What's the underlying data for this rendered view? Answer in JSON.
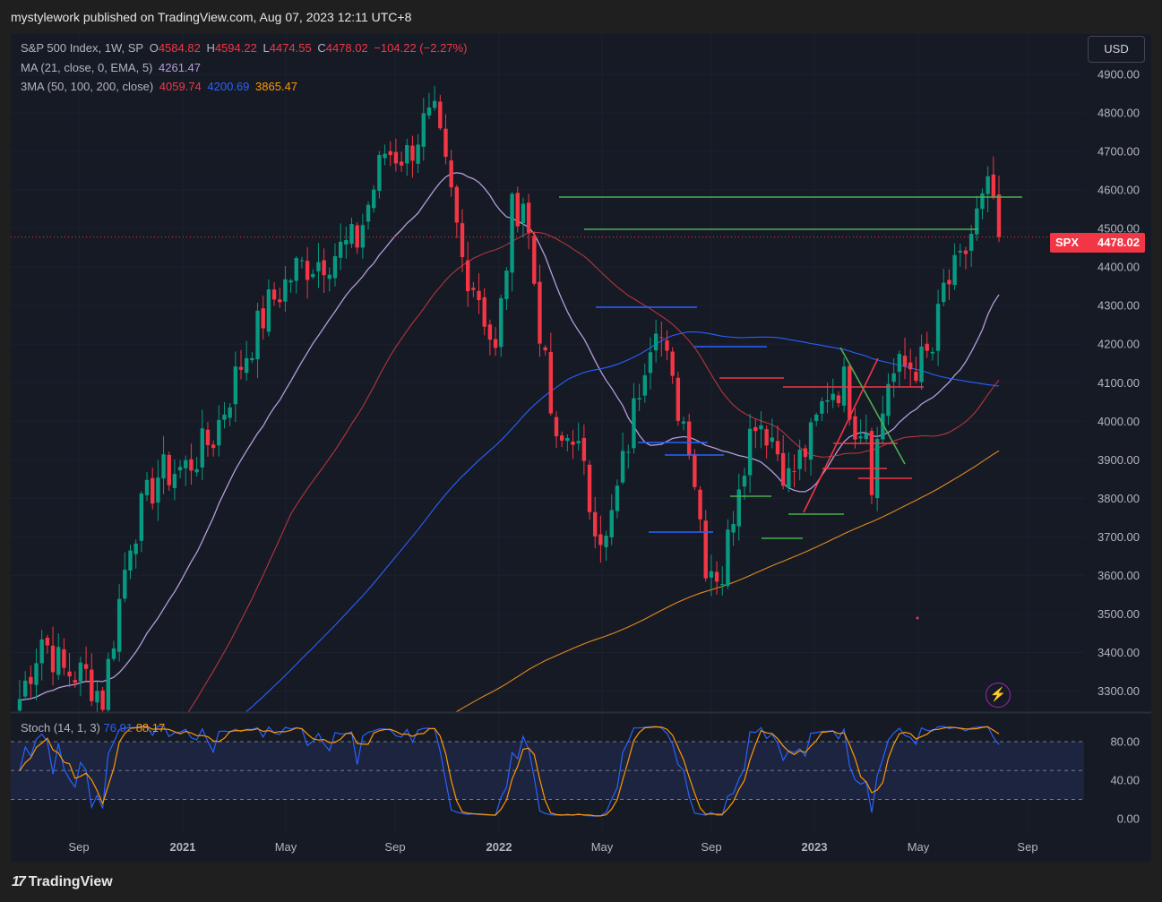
{
  "header": {
    "published": "mystylework published on TradingView.com, Aug 07, 2023 12:11 UTC+8"
  },
  "legend": {
    "symbol": "S&P 500 Index, 1W, SP",
    "open_label": "O",
    "open": "4584.82",
    "high_label": "H",
    "high": "4594.22",
    "low_label": "L",
    "low": "4474.55",
    "close_label": "C",
    "close": "4478.02",
    "change": "−104.22 (−2.27%)",
    "ma_label": "MA (21, close, 0, EMA, 5)",
    "ma_value": "4261.47",
    "ma3_label": "3MA (50, 100, 200, close)",
    "ma50": "4059.74",
    "ma100": "4200.69",
    "ma200": "3865.47"
  },
  "currency": "USD",
  "price_tag": {
    "symbol": "SPX",
    "value": "4478.02"
  },
  "stoch": {
    "label": "Stoch (14, 1, 3)",
    "k": "76.91",
    "d": "88.17"
  },
  "footer": {
    "brand": "TradingView",
    "brand_mark": "17"
  },
  "colors": {
    "up": "#089981",
    "down": "#f23645",
    "ema21": "#b39ddb",
    "ma50": "#b2363f",
    "ma100": "#2962ff",
    "ma200": "#e08a1e",
    "stoch_k": "#2962ff",
    "stoch_d": "#ff9800",
    "drawing_green": "#4caf50",
    "drawing_red": "#f23645"
  },
  "chart_data": {
    "type": "candlestick",
    "title": "S&P 500 Index, 1W, SP",
    "y_axis_ticks": [
      4900,
      4800,
      4700,
      4600,
      4500,
      4400,
      4300,
      4200,
      4100,
      4000,
      3900,
      3800,
      3700,
      3600,
      3500,
      3400,
      3300
    ],
    "y_axis_labels": [
      "4900.00",
      "4800.00",
      "4700.00",
      "4600.00",
      "4500.00",
      "4400.00",
      "4300.00",
      "4200.00",
      "4100.00",
      "4000.00",
      "3900.00",
      "3800.00",
      "3700.00",
      "3600.00",
      "3500.00",
      "3400.00",
      "3300.00"
    ],
    "ylim": [
      3245,
      5005
    ],
    "x_axis_labels": [
      "Sep",
      "2021",
      "May",
      "Sep",
      "2022",
      "May",
      "Sep",
      "2023",
      "May",
      "Sep"
    ],
    "x_axis_bold": [
      false,
      true,
      false,
      false,
      true,
      false,
      false,
      true,
      false,
      false
    ],
    "last_price": 4478.02,
    "anchors": [
      [
        0,
        3280
      ],
      [
        4,
        3440
      ],
      [
        8,
        3350
      ],
      [
        12,
        3340
      ],
      [
        15,
        3280
      ],
      [
        20,
        3700
      ],
      [
        25,
        3860
      ],
      [
        30,
        3880
      ],
      [
        35,
        3960
      ],
      [
        40,
        4150
      ],
      [
        45,
        4300
      ],
      [
        50,
        4395
      ],
      [
        56,
        4430
      ],
      [
        61,
        4470
      ],
      [
        66,
        4700
      ],
      [
        70,
        4690
      ],
      [
        73,
        4770
      ],
      [
        75,
        4780
      ],
      [
        78,
        4580
      ],
      [
        80,
        4420
      ],
      [
        83,
        4330
      ],
      [
        86,
        4170
      ],
      [
        89,
        4540
      ],
      [
        91,
        4580
      ],
      [
        92,
        4480
      ],
      [
        95,
        4130
      ],
      [
        97,
        3920
      ],
      [
        100,
        3980
      ],
      [
        103,
        3790
      ],
      [
        106,
        3680
      ],
      [
        110,
        3950
      ],
      [
        113,
        4170
      ],
      [
        115,
        4280
      ],
      [
        118,
        4080
      ],
      [
        121,
        3960
      ],
      [
        124,
        3640
      ],
      [
        127,
        3600
      ],
      [
        130,
        3860
      ],
      [
        133,
        4020
      ],
      [
        136,
        3960
      ],
      [
        139,
        3850
      ],
      [
        143,
        3950
      ],
      [
        146,
        4080
      ],
      [
        149,
        4100
      ],
      [
        151,
        4000
      ],
      [
        153,
        3990
      ],
      [
        154,
        3860
      ],
      [
        157,
        4110
      ],
      [
        160,
        4140
      ],
      [
        163,
        4150
      ],
      [
        165,
        4180
      ],
      [
        167,
        4340
      ],
      [
        170,
        4400
      ],
      [
        173,
        4530
      ],
      [
        175,
        4590
      ],
      [
        176,
        4585
      ],
      [
        177,
        4478
      ]
    ],
    "stoch_ticks": [
      80,
      40,
      0
    ],
    "stoch_labels": [
      "80.00",
      "40.00",
      "0.00"
    ],
    "stoch_k_last": 76.91,
    "stoch_d_last": 88.17
  }
}
